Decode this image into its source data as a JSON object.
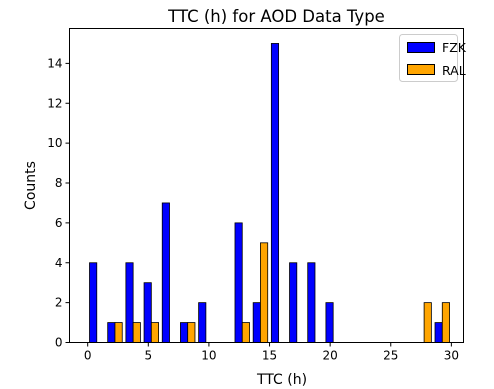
{
  "chart_data": {
    "type": "bar",
    "title": "TTC (h) for AOD Data Type",
    "xlabel": "TTC (h)",
    "ylabel": "Counts",
    "xlim": [
      -1.5,
      31
    ],
    "ylim": [
      0,
      15.75
    ],
    "xticks": [
      0,
      5,
      10,
      15,
      20,
      25,
      30
    ],
    "yticks": [
      0,
      2,
      4,
      6,
      8,
      10,
      12,
      14
    ],
    "bin_width": 1.5,
    "bin_edges": [
      0,
      1.5,
      3,
      4.5,
      6,
      7.5,
      9,
      10.5,
      12,
      13.5,
      15,
      16.5,
      18,
      19.5,
      21,
      22.5,
      24,
      25.5,
      27,
      28.5,
      30
    ],
    "series": [
      {
        "name": "FZK",
        "color": "#0000ff",
        "values": [
          4,
          1,
          4,
          3,
          7,
          1,
          2,
          0,
          6,
          2,
          15,
          4,
          4,
          2,
          0,
          0,
          0,
          0,
          0,
          1
        ]
      },
      {
        "name": "RAL",
        "color": "#ffa500",
        "values": [
          0,
          1,
          1,
          1,
          0,
          1,
          0,
          0,
          1,
          5,
          0,
          0,
          0,
          0,
          0,
          0,
          0,
          0,
          2,
          2
        ]
      }
    ],
    "legend_position": "top-right",
    "grid": false
  }
}
